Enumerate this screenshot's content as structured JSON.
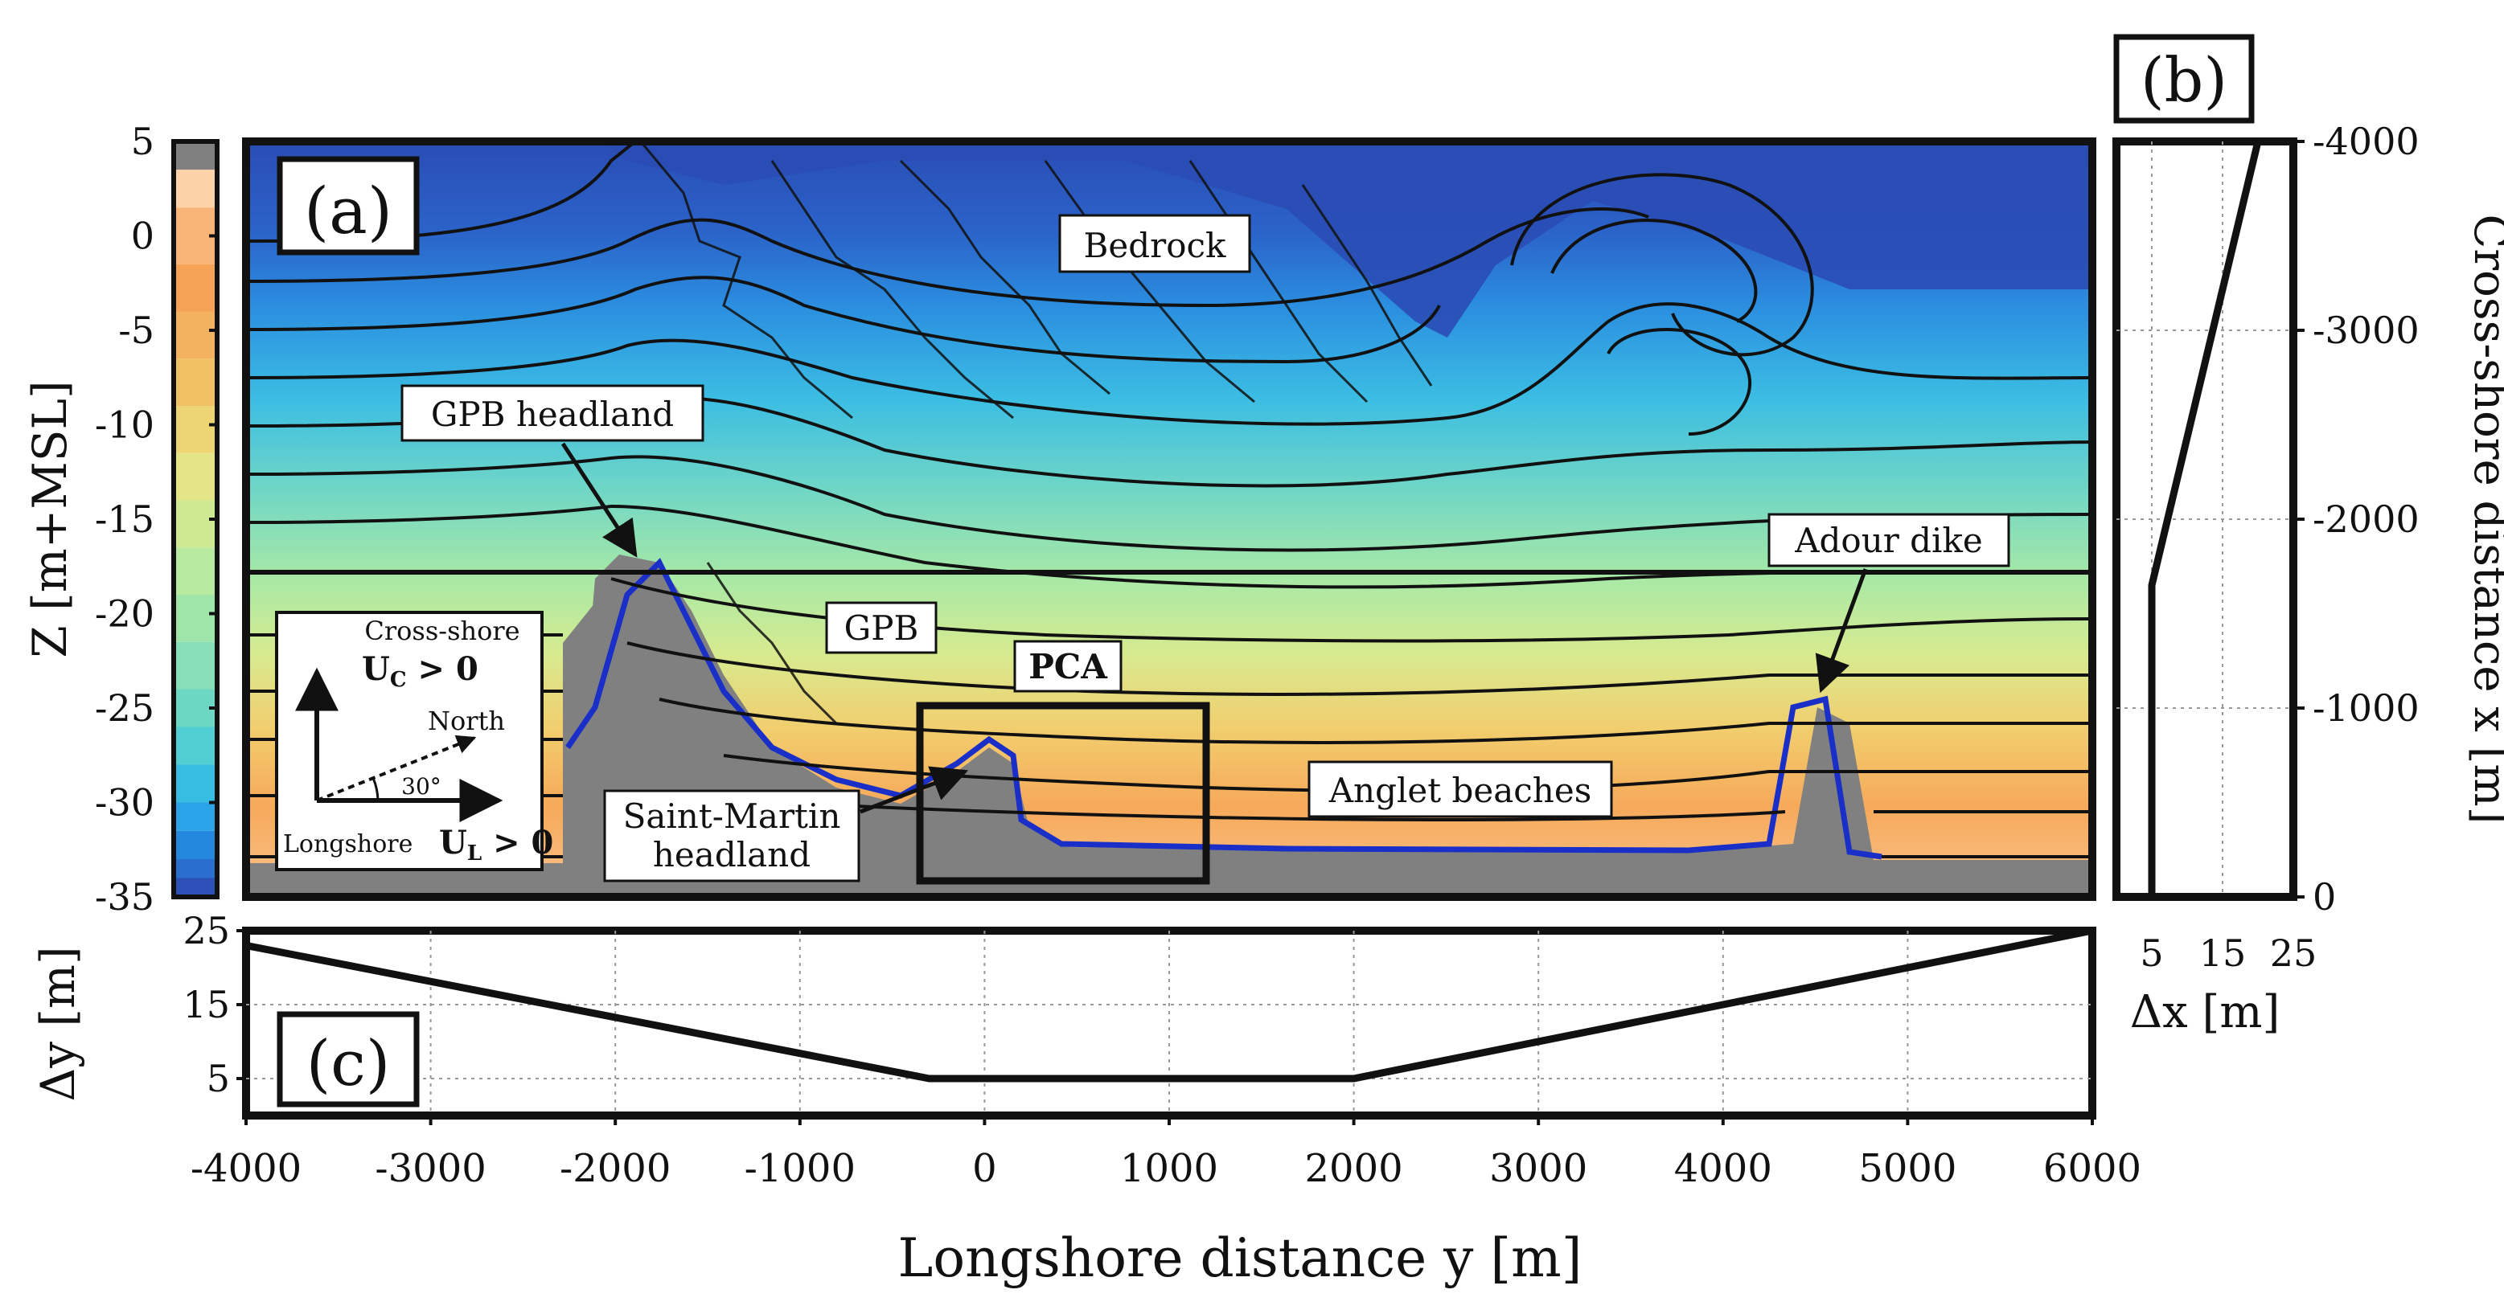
{
  "figure": {
    "panel_labels": {
      "a": "(a)",
      "b": "(b)",
      "c": "(c)"
    },
    "colorbar": {
      "label": "Z [m+MSL]",
      "ticks": [
        5,
        0,
        -5,
        -10,
        -15,
        -20,
        -25,
        -30,
        -35
      ],
      "tick_labels": [
        "5",
        "0",
        "-5",
        "-10",
        "-15",
        "-20",
        "-25",
        "-30",
        "-35"
      ],
      "range": [
        -35,
        5
      ],
      "bands": [
        {
          "from": 3.5,
          "to": 5,
          "color": "#808080"
        },
        {
          "from": 1.5,
          "to": 3.5,
          "color": "#fcd2a8"
        },
        {
          "from": -1.5,
          "to": 1.5,
          "color": "#f9b577"
        },
        {
          "from": -4.0,
          "to": -1.5,
          "color": "#f6a356"
        },
        {
          "from": -6.5,
          "to": -4.0,
          "color": "#f3b25d"
        },
        {
          "from": -9.0,
          "to": -6.5,
          "color": "#f2c164"
        },
        {
          "from": -11.5,
          "to": -9.0,
          "color": "#eed573"
        },
        {
          "from": -14.0,
          "to": -11.5,
          "color": "#e4e586"
        },
        {
          "from": -16.5,
          "to": -14.0,
          "color": "#cfe993"
        },
        {
          "from": -19.0,
          "to": -16.5,
          "color": "#b7e99f"
        },
        {
          "from": -21.5,
          "to": -19.0,
          "color": "#9fe5aa"
        },
        {
          "from": -24.0,
          "to": -21.5,
          "color": "#86dfb6"
        },
        {
          "from": -26.0,
          "to": -24.0,
          "color": "#6cd8c3"
        },
        {
          "from": -28.0,
          "to": -26.0,
          "color": "#52cfd3"
        },
        {
          "from": -30.0,
          "to": -28.0,
          "color": "#38bde2"
        },
        {
          "from": -31.5,
          "to": -30.0,
          "color": "#2aa3e8"
        },
        {
          "from": -33.0,
          "to": -31.5,
          "color": "#2488de"
        },
        {
          "from": -34.0,
          "to": -33.0,
          "color": "#2a6fd0"
        },
        {
          "from": -35.0,
          "to": -34.0,
          "color": "#2d4fb8"
        }
      ]
    },
    "annotations": {
      "bedrock": "Bedrock",
      "gpb_headland": "GPB headland",
      "gpb": "GPB",
      "pca": "PCA",
      "adour_dike": "Adour dike",
      "anglet_beaches": "Anglet beaches",
      "saint_martin_line1": "Saint-Martin",
      "saint_martin_line2": "headland"
    },
    "inset": {
      "cross_shore": "Cross-shore",
      "uc_main": "U",
      "uc_sub": "C",
      "uc_rest": " > 0",
      "north": "North",
      "angle": "30°",
      "longshore": "Longshore",
      "ul_main": "U",
      "ul_sub": "L",
      "ul_rest": " > 0"
    },
    "colors": {
      "deep_blue": "#2a4db5",
      "land_gray": "#808080",
      "shoreline_blue": "#1a2fc8",
      "contour": "#111111"
    }
  },
  "chart_data": [
    {
      "panel": "(a)",
      "type": "heatmap",
      "xlabel": "",
      "ylabel": "",
      "colorbar_label": "Z [m+MSL]",
      "x_range": [
        -4000,
        6000
      ],
      "y_range": [
        0,
        4000
      ],
      "labels": [
        "Bedrock",
        "GPB headland",
        "GPB",
        "PCA",
        "Adour dike",
        "Anglet beaches",
        "Saint-Martin headland"
      ]
    },
    {
      "panel": "(b)",
      "type": "line",
      "xlabel": "Δx [m]",
      "ylabel": "Cross-shore distance x [m]",
      "x_ticks": [
        "5",
        "15",
        "25"
      ],
      "y_ticks": [
        "-4000",
        "-3000",
        "-2000",
        "-1000",
        "0"
      ],
      "xlim": [
        0,
        25
      ],
      "ylim": [
        0,
        4000
      ],
      "series": [
        {
          "x": [
            5,
            5,
            20
          ],
          "y": [
            0,
            1650,
            4000
          ]
        }
      ]
    },
    {
      "panel": "(c)",
      "type": "line",
      "xlabel": "Longshore distance y [m]",
      "ylabel": "Δy [m]",
      "x_ticks": [
        "-4000",
        "-3000",
        "-2000",
        "-1000",
        "0",
        "1000",
        "2000",
        "3000",
        "4000",
        "5000",
        "6000"
      ],
      "y_ticks": [
        "5",
        "15",
        "25"
      ],
      "xlim": [
        -4000,
        6000
      ],
      "ylim": [
        0,
        25
      ],
      "series": [
        {
          "x": [
            -4000,
            -300,
            2000,
            6000
          ],
          "y": [
            23,
            5,
            5,
            25
          ]
        }
      ]
    }
  ]
}
